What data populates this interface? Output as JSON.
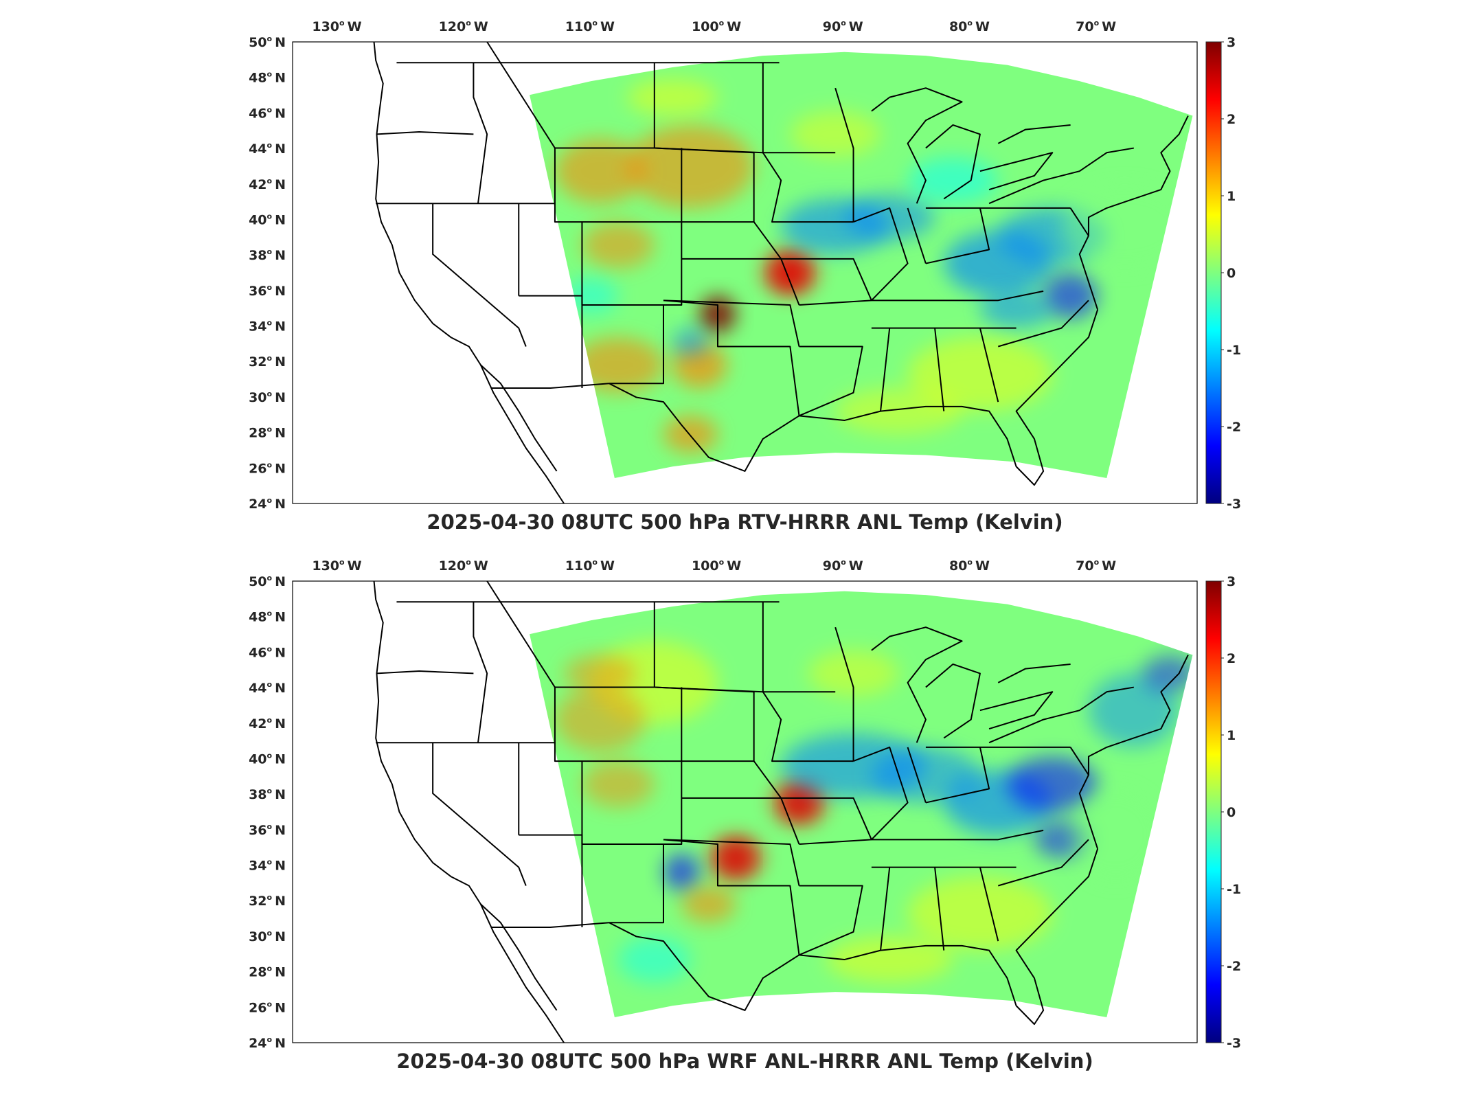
{
  "figure": {
    "palette": [
      "#00007f",
      "#0000ff",
      "#007fff",
      "#00ffff",
      "#7fff7f",
      "#ffff00",
      "#ff7f00",
      "#ff0000",
      "#7f0000"
    ],
    "panels": [
      {
        "title": "2025-04-30 08UTC 500 hPa RTV-HRRR ANL Temp (Kelvin)",
        "variant": "rtv",
        "lon_labels": [
          {
            "lon": -130,
            "text": "130",
            "hemi": "W"
          },
          {
            "lon": -120,
            "text": "120",
            "hemi": "W"
          },
          {
            "lon": -110,
            "text": "110",
            "hemi": "W"
          },
          {
            "lon": -100,
            "text": "100",
            "hemi": "W"
          },
          {
            "lon": -90,
            "text": "90",
            "hemi": "W"
          },
          {
            "lon": -80,
            "text": "80",
            "hemi": "W"
          },
          {
            "lon": -70,
            "text": "70",
            "hemi": "W"
          }
        ],
        "lat_labels": [
          {
            "lat": 50,
            "text": "50",
            "hemi": "N"
          },
          {
            "lat": 48,
            "text": "48",
            "hemi": "N"
          },
          {
            "lat": 46,
            "text": "46",
            "hemi": "N"
          },
          {
            "lat": 44,
            "text": "44",
            "hemi": "N"
          },
          {
            "lat": 42,
            "text": "42",
            "hemi": "N"
          },
          {
            "lat": 40,
            "text": "40",
            "hemi": "N"
          },
          {
            "lat": 38,
            "text": "38",
            "hemi": "N"
          },
          {
            "lat": 36,
            "text": "36",
            "hemi": "N"
          },
          {
            "lat": 34,
            "text": "34",
            "hemi": "N"
          },
          {
            "lat": 32,
            "text": "32",
            "hemi": "N"
          },
          {
            "lat": 30,
            "text": "30",
            "hemi": "N"
          },
          {
            "lat": 28,
            "text": "28",
            "hemi": "N"
          },
          {
            "lat": 26,
            "text": "26",
            "hemi": "N"
          },
          {
            "lat": 24,
            "text": "24",
            "hemi": "N"
          }
        ],
        "colorbar": {
          "min": -3,
          "max": 3,
          "ticks": [
            "3",
            "2",
            "1",
            "0",
            "-1",
            "-2",
            "-3"
          ]
        }
      },
      {
        "title": "2025-04-30 08UTC 500 hPa WRF ANL-HRRR ANL Temp (Kelvin)",
        "variant": "wrf",
        "lon_labels": [
          {
            "lon": -130,
            "text": "130",
            "hemi": "W"
          },
          {
            "lon": -120,
            "text": "120",
            "hemi": "W"
          },
          {
            "lon": -110,
            "text": "110",
            "hemi": "W"
          },
          {
            "lon": -100,
            "text": "100",
            "hemi": "W"
          },
          {
            "lon": -90,
            "text": "90",
            "hemi": "W"
          },
          {
            "lon": -80,
            "text": "80",
            "hemi": "W"
          },
          {
            "lon": -70,
            "text": "70",
            "hemi": "W"
          }
        ],
        "lat_labels": [
          {
            "lat": 50,
            "text": "50",
            "hemi": "N"
          },
          {
            "lat": 48,
            "text": "48",
            "hemi": "N"
          },
          {
            "lat": 46,
            "text": "46",
            "hemi": "N"
          },
          {
            "lat": 44,
            "text": "44",
            "hemi": "N"
          },
          {
            "lat": 42,
            "text": "42",
            "hemi": "N"
          },
          {
            "lat": 40,
            "text": "40",
            "hemi": "N"
          },
          {
            "lat": 38,
            "text": "38",
            "hemi": "N"
          },
          {
            "lat": 36,
            "text": "36",
            "hemi": "N"
          },
          {
            "lat": 34,
            "text": "34",
            "hemi": "N"
          },
          {
            "lat": 32,
            "text": "32",
            "hemi": "N"
          },
          {
            "lat": 30,
            "text": "30",
            "hemi": "N"
          },
          {
            "lat": 28,
            "text": "28",
            "hemi": "N"
          },
          {
            "lat": 26,
            "text": "26",
            "hemi": "N"
          },
          {
            "lat": 24,
            "text": "24",
            "hemi": "N"
          }
        ],
        "colorbar": {
          "min": -3,
          "max": 3,
          "ticks": [
            "3",
            "2",
            "1",
            "0",
            "-1",
            "-2",
            "-3"
          ]
        }
      }
    ]
  }
}
